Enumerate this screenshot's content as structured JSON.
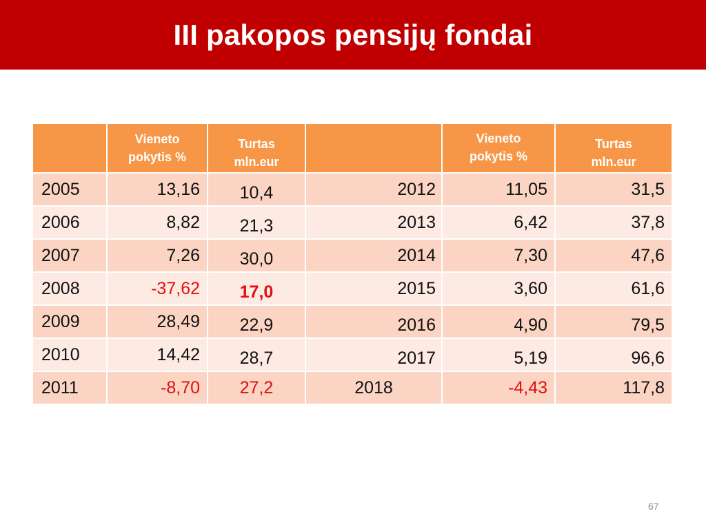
{
  "title": "III pakopos pensijų fondai",
  "headers": {
    "col1": "",
    "col2_line1": "Vieneto",
    "col2_line2": "pokytis  %",
    "col3_line1": "Turtas",
    "col3_line2": "mln.eur",
    "col4": "",
    "col5_line1": "Vieneto",
    "col5_line2": "pokytis  %",
    "col6_line1": "Turtas",
    "col6_line2": "mln.eur"
  },
  "rows": [
    {
      "year1": "2005",
      "change1": "13,16",
      "assets1": "10,4",
      "year2": "2012",
      "change2": "11,05",
      "assets2": "31,5"
    },
    {
      "year1": "2006",
      "change1": "8,82",
      "assets1": "21,3",
      "year2": "2013",
      "change2": "6,42",
      "assets2": "37,8"
    },
    {
      "year1": "2007",
      "change1": "7,26",
      "assets1": "30,0",
      "year2": "2014",
      "change2": "7,30",
      "assets2": "47,6"
    },
    {
      "year1": "2008",
      "change1": "-37,62",
      "assets1": "17,0",
      "year2": "2015",
      "change2": "3,60",
      "assets2": "61,6"
    },
    {
      "year1": "2009",
      "change1": "28,49",
      "assets1": "22,9",
      "year2": "2016",
      "change2": "4,90",
      "assets2": "79,5"
    },
    {
      "year1": "2010",
      "change1": "14,42",
      "assets1": "28,7",
      "year2": "2017",
      "change2": "5,19",
      "assets2": "96,6"
    },
    {
      "year1": "2011",
      "change1": "-8,70",
      "assets1": "27,2",
      "year2": "2018",
      "change2": "-4,43",
      "assets2": "117,8"
    }
  ],
  "page_number": "67",
  "colors": {
    "title_bar": "#c00000",
    "header": "#f79646",
    "row_dark": "#fbd4c3",
    "row_light": "#fdeae3",
    "negative": "#e01010"
  }
}
